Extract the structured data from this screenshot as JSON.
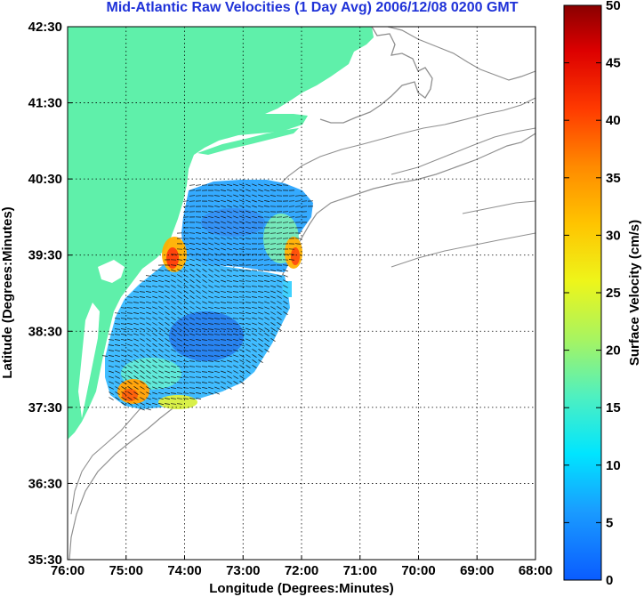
{
  "title": "Mid-Atlantic Raw Velocities (1 Day Avg) 2006/12/08 0200 GMT",
  "x_axis": {
    "label": "Longitude (Degrees:Minutes)",
    "ticks": [
      "76:00",
      "75:00",
      "74:00",
      "73:00",
      "72:00",
      "71:00",
      "70:00",
      "69:00",
      "68:00"
    ]
  },
  "y_axis": {
    "label": "Latitude (Degrees:Minutes)",
    "ticks": [
      "42:30",
      "41:30",
      "40:30",
      "39:30",
      "38:30",
      "37:30",
      "36:30",
      "35:30"
    ]
  },
  "colorbar": {
    "label": "Surface Velocity (cm/s)",
    "ticks": [
      "50",
      "45",
      "40",
      "35",
      "30",
      "25",
      "20",
      "15",
      "10",
      "5",
      "0"
    ],
    "min": 0,
    "max": 50
  },
  "colors": {
    "land": "#5ff0aa",
    "title": "#1f32d8",
    "coast_outline": "#909090",
    "grid": "#000000"
  },
  "chart_data": {
    "type": "heatmap",
    "title": "Mid-Atlantic Raw Velocities (1 Day Avg) 2006/12/08 0200 GMT",
    "xlabel": "Longitude (Degrees:Minutes)",
    "ylabel": "Latitude (Degrees:Minutes)",
    "xlim": [
      -76.0,
      -68.0
    ],
    "ylim": [
      35.5,
      42.5
    ],
    "grid": "dotted",
    "colorbar_label": "Surface Velocity (cm/s)",
    "colorbar_range": [
      0,
      50
    ],
    "velocity_field_samples": [
      {
        "lon": -73.9,
        "lat": 39.9,
        "speed": 8
      },
      {
        "lon": -73.3,
        "lat": 39.8,
        "speed": 10
      },
      {
        "lon": -72.6,
        "lat": 39.6,
        "speed": 14
      },
      {
        "lon": -72.2,
        "lat": 39.4,
        "speed": 28
      },
      {
        "lon": -74.6,
        "lat": 39.4,
        "speed": 32
      },
      {
        "lon": -74.0,
        "lat": 39.2,
        "speed": 10
      },
      {
        "lon": -73.2,
        "lat": 39.1,
        "speed": 12
      },
      {
        "lon": -74.3,
        "lat": 38.6,
        "speed": 9
      },
      {
        "lon": -73.5,
        "lat": 38.5,
        "speed": 7
      },
      {
        "lon": -73.8,
        "lat": 38.0,
        "speed": 6
      },
      {
        "lon": -74.8,
        "lat": 38.2,
        "speed": 16
      },
      {
        "lon": -75.2,
        "lat": 37.6,
        "speed": 28
      },
      {
        "lon": -74.4,
        "lat": 37.5,
        "speed": 18
      },
      {
        "lon": -73.0,
        "lat": 37.9,
        "speed": 14
      }
    ]
  }
}
